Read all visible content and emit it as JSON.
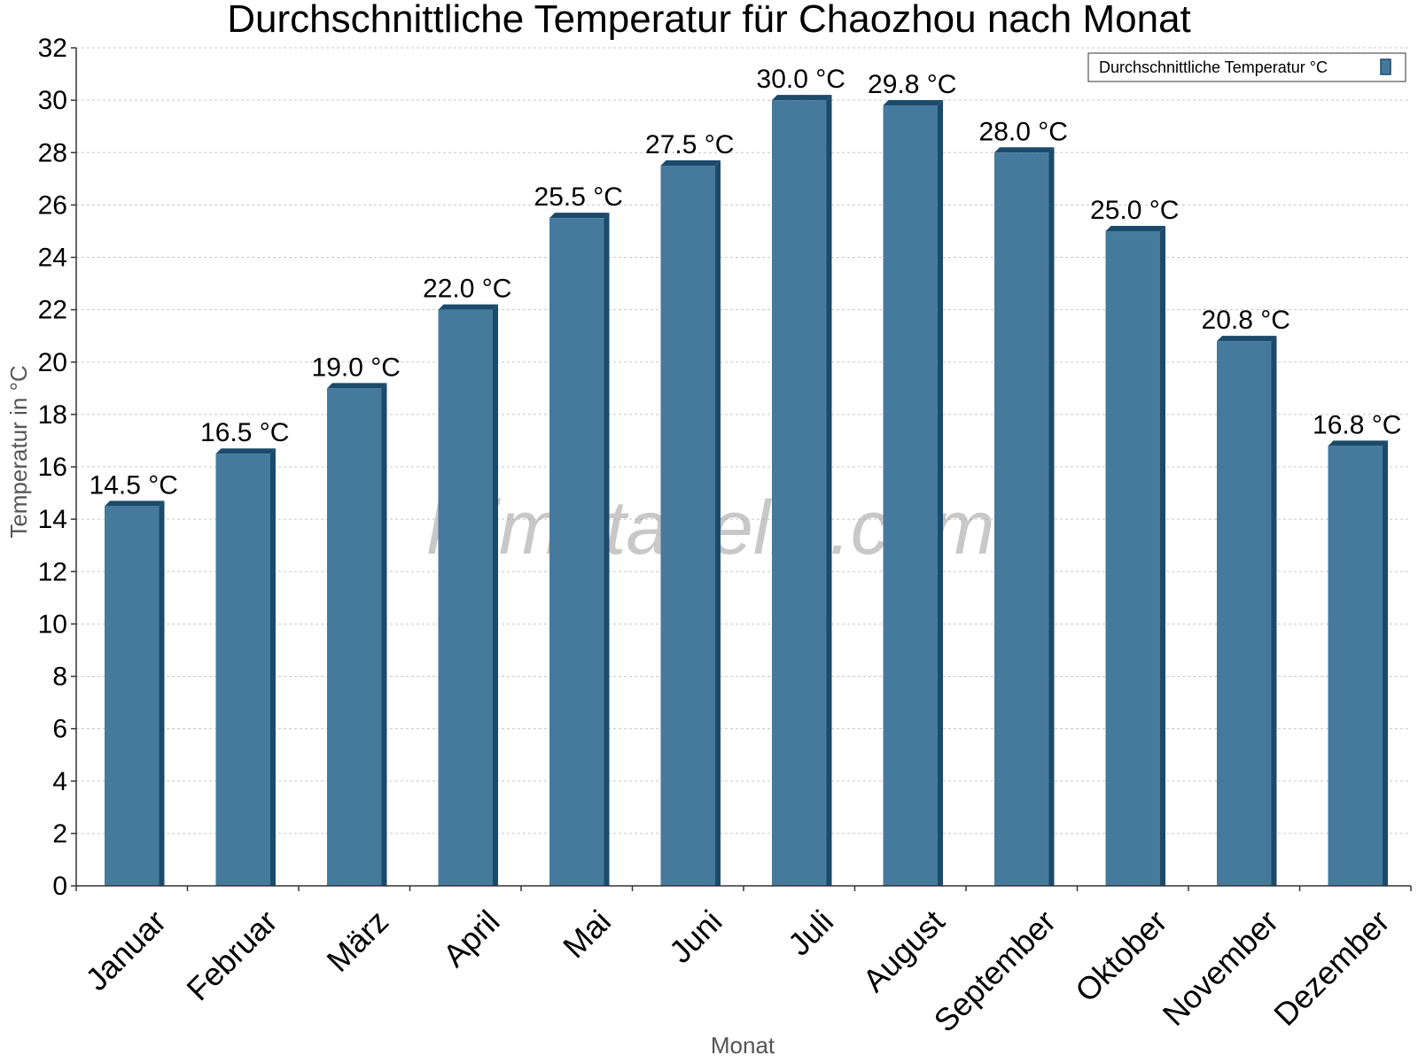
{
  "chart_data": {
    "type": "bar",
    "title": "Durchschnittliche Temperatur für Chaozhou nach Monat",
    "xlabel": "Monat",
    "ylabel": "Temperatur in °C",
    "ylim": [
      0,
      32
    ],
    "ytick_step": 2,
    "grid": true,
    "legend_position": "top-right",
    "categories": [
      "Januar",
      "Februar",
      "März",
      "April",
      "Mai",
      "Juni",
      "Juli",
      "August",
      "September",
      "Oktober",
      "November",
      "Dezember"
    ],
    "series": [
      {
        "name": "Durchschnittliche Temperatur °C",
        "values": [
          14.5,
          16.5,
          19.0,
          22.0,
          25.5,
          27.5,
          30.0,
          29.8,
          28.0,
          25.0,
          20.8,
          16.8
        ],
        "labels": [
          "14.5 °C",
          "16.5 °C",
          "19.0 °C",
          "22.0 °C",
          "25.5 °C",
          "27.5 °C",
          "30.0 °C",
          "29.8 °C",
          "28.0 °C",
          "25.0 °C",
          "20.8 °C",
          "16.8 °C"
        ],
        "color": "#467a9c",
        "shade_color": "#1b4a6b"
      }
    ]
  },
  "watermark": "klimatabelle.com"
}
